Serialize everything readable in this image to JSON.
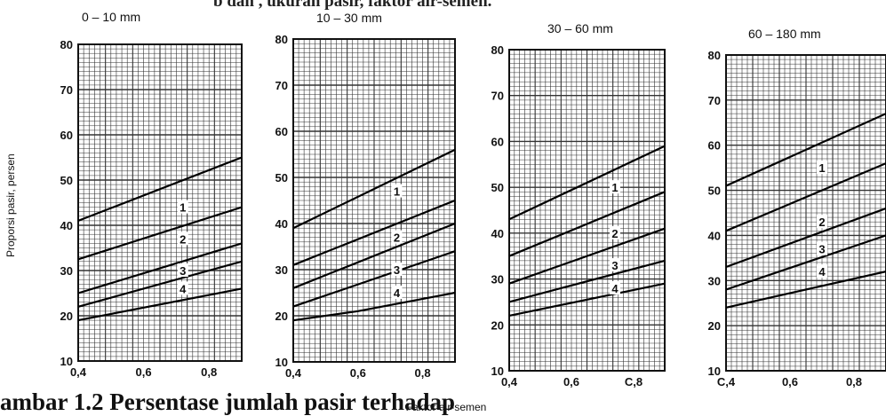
{
  "caption": {
    "top_fragment": "b dan        , ukuran        pasir, faktor air-semen.",
    "bottom_fragment": "ambar 1.2  Persentase jumlah pasir terhadap"
  },
  "shared": {
    "ylabel": "Proporsi pasir, persen",
    "xlabel": "Faktor air-semen"
  },
  "chart_data": [
    {
      "type": "line",
      "title": "0 – 10 mm",
      "xlim": [
        0.4,
        0.9
      ],
      "ylim": [
        10,
        80
      ],
      "xticks": [
        "0,4",
        "0,6",
        "0,8"
      ],
      "yticks": [
        "10",
        "20",
        "30",
        "40",
        "50",
        "60",
        "70",
        "80"
      ],
      "grid": true,
      "series": [
        {
          "x": [
            0.4,
            0.9
          ],
          "y": [
            41,
            55
          ]
        },
        {
          "x": [
            0.4,
            0.9
          ],
          "y": [
            32.5,
            44
          ]
        },
        {
          "x": [
            0.4,
            0.9
          ],
          "y": [
            25,
            36
          ]
        },
        {
          "x": [
            0.4,
            0.9
          ],
          "y": [
            22,
            32
          ]
        },
        {
          "x": [
            0.4,
            0.9
          ],
          "y": [
            19,
            26
          ]
        }
      ],
      "curve_labels": [
        {
          "text": "1",
          "x": 0.72,
          "y": 44
        },
        {
          "text": "2",
          "x": 0.72,
          "y": 37
        },
        {
          "text": "3",
          "x": 0.72,
          "y": 30
        },
        {
          "text": "4",
          "x": 0.72,
          "y": 26
        }
      ]
    },
    {
      "type": "line",
      "title": "10 – 30 mm",
      "xlim": [
        0.4,
        0.9
      ],
      "ylim": [
        10,
        80
      ],
      "xticks": [
        "0,4",
        "0,6",
        "0,8"
      ],
      "yticks": [
        "10",
        "20",
        "30",
        "40",
        "50",
        "60",
        "70",
        "80"
      ],
      "grid": true,
      "series": [
        {
          "x": [
            0.4,
            0.9
          ],
          "y": [
            39,
            56
          ]
        },
        {
          "x": [
            0.4,
            0.9
          ],
          "y": [
            31,
            45
          ]
        },
        {
          "x": [
            0.4,
            0.9
          ],
          "y": [
            26,
            40
          ]
        },
        {
          "x": [
            0.4,
            0.9
          ],
          "y": [
            22,
            34
          ]
        },
        {
          "x": [
            0.4,
            0.6,
            0.9
          ],
          "y": [
            19,
            21,
            25
          ]
        }
      ],
      "curve_labels": [
        {
          "text": "1",
          "x": 0.72,
          "y": 47
        },
        {
          "text": "2",
          "x": 0.72,
          "y": 37
        },
        {
          "text": "3",
          "x": 0.72,
          "y": 30
        },
        {
          "text": "4",
          "x": 0.72,
          "y": 25
        }
      ]
    },
    {
      "type": "line",
      "title": "30 – 60 mm",
      "xlim": [
        0.4,
        0.9
      ],
      "ylim": [
        10,
        80
      ],
      "xticks": [
        "0,4",
        "0,6",
        "C,8"
      ],
      "yticks": [
        "10",
        "20",
        "30",
        "40",
        "50",
        "60",
        "70",
        "80"
      ],
      "grid": true,
      "series": [
        {
          "x": [
            0.4,
            0.9
          ],
          "y": [
            43,
            59
          ]
        },
        {
          "x": [
            0.4,
            0.9
          ],
          "y": [
            35,
            49
          ]
        },
        {
          "x": [
            0.4,
            0.9
          ],
          "y": [
            29,
            41
          ]
        },
        {
          "x": [
            0.4,
            0.9
          ],
          "y": [
            25,
            34
          ]
        },
        {
          "x": [
            0.4,
            0.9
          ],
          "y": [
            22,
            29
          ]
        }
      ],
      "curve_labels": [
        {
          "text": "1",
          "x": 0.74,
          "y": 50
        },
        {
          "text": "2",
          "x": 0.74,
          "y": 40
        },
        {
          "text": "3",
          "x": 0.74,
          "y": 33
        },
        {
          "text": "4",
          "x": 0.74,
          "y": 28
        }
      ]
    },
    {
      "type": "line",
      "title": "60 – 180 mm",
      "xlim": [
        0.4,
        0.9
      ],
      "ylim": [
        10,
        80
      ],
      "xticks": [
        "C,4",
        "0,6",
        "0,8"
      ],
      "yticks": [
        "10",
        "20",
        "30",
        "40",
        "50",
        "60",
        "70",
        "80"
      ],
      "grid": true,
      "series": [
        {
          "x": [
            0.4,
            0.9
          ],
          "y": [
            51,
            67
          ]
        },
        {
          "x": [
            0.4,
            0.9
          ],
          "y": [
            41,
            56
          ]
        },
        {
          "x": [
            0.4,
            0.9
          ],
          "y": [
            33,
            46
          ]
        },
        {
          "x": [
            0.4,
            0.9
          ],
          "y": [
            28,
            40
          ]
        },
        {
          "x": [
            0.4,
            0.9
          ],
          "y": [
            24,
            32
          ]
        }
      ],
      "curve_labels": [
        {
          "text": "1",
          "x": 0.7,
          "y": 55
        },
        {
          "text": "2",
          "x": 0.7,
          "y": 43
        },
        {
          "text": "3",
          "x": 0.7,
          "y": 37
        },
        {
          "text": "4",
          "x": 0.7,
          "y": 32
        }
      ]
    }
  ]
}
